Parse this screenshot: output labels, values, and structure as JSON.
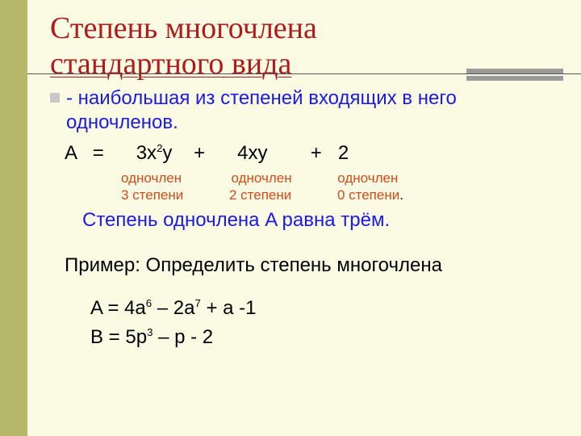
{
  "colors": {
    "background": "#fbfbe3",
    "sidebar": "#b7b76a",
    "title": "#b01a1a",
    "body": "#000000",
    "blue": "#1a1ae6",
    "orange": "#d64a1a",
    "bullet": "#c8c8c8",
    "thin_rule": "#555555",
    "thick_rule": "#9a9a9a"
  },
  "fonts": {
    "title_family": "Times New Roman",
    "title_size_pt": 28,
    "body_family": "Arial",
    "body_size_pt": 18,
    "mono_label_size_pt": 13
  },
  "title": {
    "line1": "Степень многочлена",
    "line2": "стандартного вида"
  },
  "definition": {
    "prefix": "- ",
    "text": "наибольшая из степеней входящих в него одночленов."
  },
  "expression": {
    "lhs": "A   =      3x",
    "exp1": "2",
    "mid1": "y    +      4xy        +   2",
    "labels": {
      "col1_top": "одночлен",
      "col1_bot": "3 степени",
      "col2_top": "одночлен",
      "col2_bot": "2 степени",
      "col3_top": "одночлен",
      "col3_bot": "0 степени"
    }
  },
  "conclusion": "Степень одночлена A равна трём.",
  "example_label": "Пример: Определить степень многочлена",
  "equations": {
    "A": {
      "pre": "A = 4a",
      "e1": "6",
      "mid": " – 2a",
      "e2": "7",
      "post": " + a -1"
    },
    "B": {
      "pre": "B = 5p",
      "e1": "3",
      "post": " – p - 2"
    }
  }
}
